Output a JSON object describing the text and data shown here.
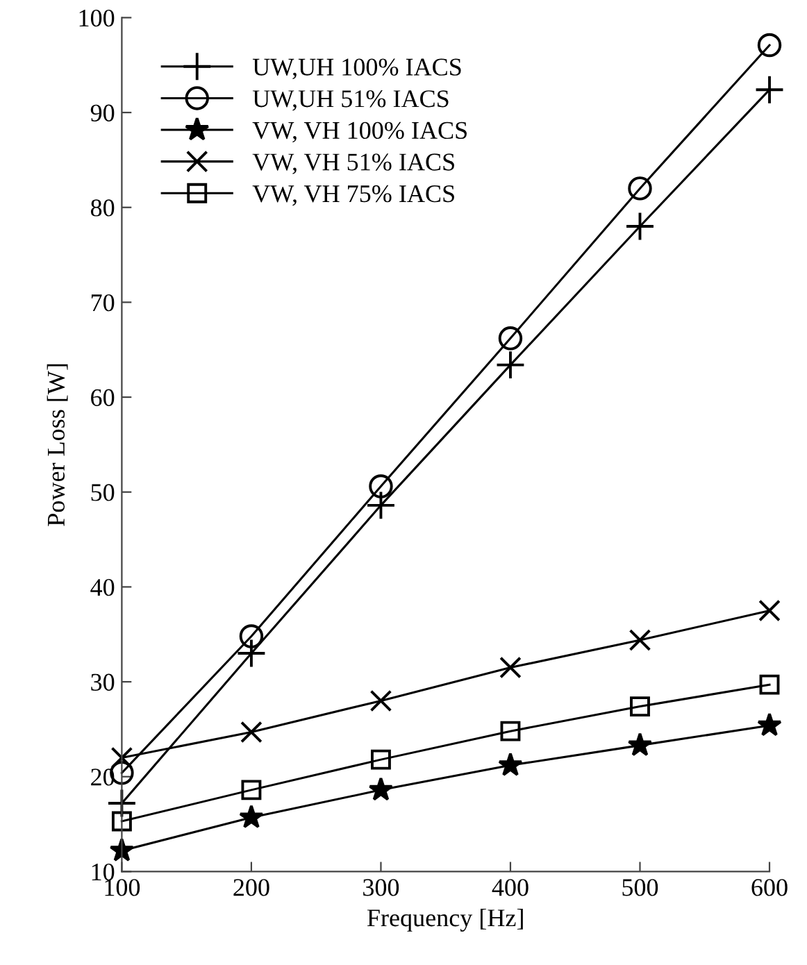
{
  "chart_data": {
    "type": "line",
    "xlabel": "Frequency [Hz]",
    "ylabel": "Power Loss [W]",
    "x": [
      100,
      200,
      300,
      400,
      500,
      600
    ],
    "series": [
      {
        "name": "UW,UH 100% IACS",
        "color": "#000000",
        "marker": "plus",
        "values": [
          17.2,
          33.0,
          48.6,
          63.4,
          78.0,
          92.4
        ]
      },
      {
        "name": "UW,UH 51% IACS",
        "color": "#000000",
        "marker": "circle",
        "values": [
          20.4,
          34.8,
          50.6,
          66.2,
          82.0,
          97.1
        ]
      },
      {
        "name": "VW, VH 100% IACS",
        "color": "#000000",
        "marker": "star",
        "values": [
          12.2,
          15.7,
          18.6,
          21.2,
          23.3,
          25.4
        ]
      },
      {
        "name": "VW, VH 51% IACS",
        "color": "#000000",
        "marker": "cross",
        "values": [
          22.0,
          24.7,
          28.0,
          31.5,
          34.4,
          37.5
        ]
      },
      {
        "name": "VW, VH 75% IACS",
        "color": "#000000",
        "marker": "square",
        "values": [
          15.3,
          18.6,
          21.8,
          24.8,
          27.4,
          29.7
        ]
      }
    ],
    "xlim": [
      100,
      600
    ],
    "xticks": [
      100,
      200,
      300,
      400,
      500,
      600
    ],
    "ylim": [
      10,
      100
    ],
    "yticks": [
      10,
      20,
      30,
      40,
      50,
      60,
      70,
      80,
      90,
      100
    ],
    "grid": false,
    "legend": "top left",
    "line_style": "solid"
  }
}
